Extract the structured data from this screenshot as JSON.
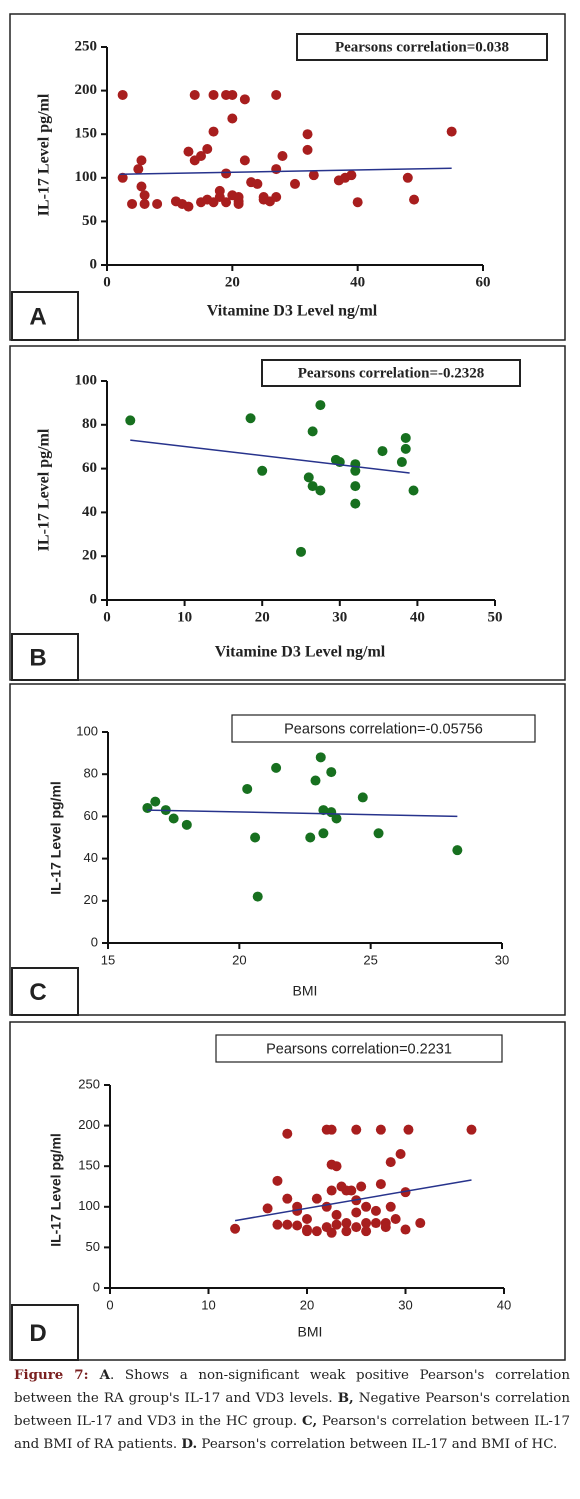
{
  "chart_data": [
    {
      "type": "scatter",
      "panel": "A",
      "font": "serif",
      "annotation": "Pearsons correlation=0.038",
      "ylabel": "IL-17 Level pg/ml",
      "xlabel": "Vitamine D3 Level ng/ml",
      "color": "#a81e1e",
      "line_color": "#27338c",
      "xlim": [
        0,
        60
      ],
      "ylim": [
        0,
        250
      ],
      "xticks": [
        0,
        20,
        40,
        60
      ],
      "yticks": [
        0,
        50,
        100,
        150,
        200,
        250
      ],
      "x": [
        2.5,
        2.5,
        4,
        5,
        5.5,
        5.5,
        6,
        6,
        8,
        11,
        12,
        13,
        13,
        14,
        14,
        15,
        15,
        16,
        16,
        17,
        17,
        17,
        18,
        18,
        19,
        19,
        19,
        20,
        20,
        20,
        21,
        21,
        21,
        22,
        22,
        23,
        24,
        25,
        25,
        26,
        27,
        27,
        27,
        28,
        30,
        32,
        32,
        33,
        37,
        38,
        39,
        40,
        48,
        49,
        55
      ],
      "y": [
        195,
        100,
        70,
        110,
        120,
        90,
        80,
        70,
        70,
        73,
        70,
        67,
        130,
        195,
        120,
        125,
        72,
        75,
        133,
        153,
        195,
        72,
        85,
        78,
        195,
        72,
        105,
        80,
        195,
        168,
        73,
        78,
        70,
        190,
        120,
        95,
        93,
        78,
        75,
        73,
        195,
        110,
        78,
        125,
        93,
        132,
        150,
        103,
        97,
        100,
        103,
        72,
        100,
        75,
        153
      ],
      "trendline": {
        "x": [
          2,
          55
        ],
        "y": [
          104,
          111
        ]
      }
    },
    {
      "type": "scatter",
      "panel": "B",
      "font": "serif",
      "annotation": "Pearsons correlation=-0.2328",
      "ylabel": "IL-17 Level pg/ml",
      "xlabel": "Vitamine D3 Level ng/ml",
      "color": "#17701f",
      "line_color": "#27338c",
      "xlim": [
        0,
        50
      ],
      "ylim": [
        0,
        100
      ],
      "xticks": [
        0,
        10,
        20,
        30,
        40,
        50
      ],
      "yticks": [
        0,
        20,
        40,
        60,
        80,
        100
      ],
      "x": [
        3,
        18.5,
        20,
        26,
        26.5,
        26.5,
        27.5,
        27.5,
        25,
        29.5,
        30,
        32,
        32,
        32,
        32,
        35.5,
        38,
        38.5,
        38.5,
        39.5
      ],
      "y": [
        82,
        83,
        59,
        56,
        77,
        52,
        89,
        50,
        22,
        64,
        63,
        62,
        59,
        52,
        44,
        68,
        63,
        74,
        69,
        50
      ],
      "trendline": {
        "x": [
          3,
          39
        ],
        "y": [
          73,
          58
        ]
      }
    },
    {
      "type": "scatter",
      "panel": "C",
      "font": "sans",
      "annotation": "Pearsons correlation=-0.05756",
      "ylabel": "IL-17 Level pg/ml",
      "xlabel": "BMI",
      "color": "#17701f",
      "line_color": "#27338c",
      "xlim": [
        15,
        30
      ],
      "ylim": [
        0,
        100
      ],
      "xticks": [
        15,
        20,
        25,
        30
      ],
      "yticks": [
        0,
        20,
        40,
        60,
        80,
        100
      ],
      "x": [
        16.5,
        16.8,
        17.2,
        17.5,
        18,
        20.3,
        20.6,
        20.7,
        21.4,
        22.7,
        22.9,
        23.1,
        23.2,
        23.2,
        23.5,
        23.5,
        23.7,
        24.7,
        25.3,
        28.3
      ],
      "y": [
        64,
        67,
        63,
        59,
        56,
        73,
        50,
        22,
        83,
        50,
        77,
        88,
        63,
        52,
        81,
        62,
        59,
        69,
        52,
        44
      ],
      "trendline": {
        "x": [
          16.5,
          28.3
        ],
        "y": [
          63,
          60
        ]
      }
    },
    {
      "type": "scatter",
      "panel": "D",
      "font": "sans",
      "annotation": "Pearsons correlation=0.2231",
      "ylabel": "IL-17 Level pg/ml",
      "xlabel": "BMI",
      "color": "#a81e1e",
      "line_color": "#27338c",
      "xlim": [
        0,
        40
      ],
      "ylim": [
        0,
        250
      ],
      "xticks": [
        0,
        10,
        20,
        30,
        40
      ],
      "yticks": [
        0,
        50,
        100,
        150,
        200,
        250
      ],
      "x": [
        12.7,
        16,
        17,
        17,
        18,
        18,
        18,
        19,
        19,
        19,
        20,
        20,
        20,
        21,
        21,
        22,
        22,
        22,
        22.5,
        22.5,
        22.5,
        22.5,
        23,
        23,
        23,
        23.5,
        24,
        24,
        24,
        24.5,
        25,
        25,
        25,
        25,
        25.5,
        26,
        26,
        26,
        27,
        27,
        27.5,
        27.5,
        28,
        28,
        28.5,
        28.5,
        29,
        29.5,
        30,
        30,
        30.3,
        31.5,
        36.7
      ],
      "y": [
        73,
        98,
        132,
        78,
        190,
        110,
        78,
        100,
        95,
        77,
        85,
        72,
        70,
        110,
        70,
        195,
        100,
        75,
        195,
        152,
        120,
        68,
        150,
        90,
        78,
        125,
        120,
        80,
        70,
        120,
        195,
        108,
        93,
        75,
        125,
        100,
        80,
        70,
        95,
        80,
        195,
        128,
        80,
        75,
        155,
        100,
        85,
        165,
        118,
        72,
        195,
        80,
        195
      ],
      "trendline": {
        "x": [
          12.7,
          36.7
        ],
        "y": [
          83,
          133
        ]
      }
    }
  ],
  "caption": [
    {
      "text": "Figure 7:",
      "bold": true,
      "color": "#7a1f1f"
    },
    {
      "text": " A",
      "bold": true
    },
    {
      "text": ". Shows a non-significant weak positive Pearson's correlation between the RA group's IL-17 and VD3 levels. "
    },
    {
      "text": "B,",
      "bold": true
    },
    {
      "text": " Negative Pearson's correlation between IL-17 and VD3 in the HC group. "
    },
    {
      "text": "C,",
      "bold": true
    },
    {
      "text": " Pearson's correlation between IL-17 and BMI of RA patients. "
    },
    {
      "text": "D.",
      "bold": true
    },
    {
      "text": " Pearson's correlation between IL-17 and BMI of HC."
    }
  ]
}
